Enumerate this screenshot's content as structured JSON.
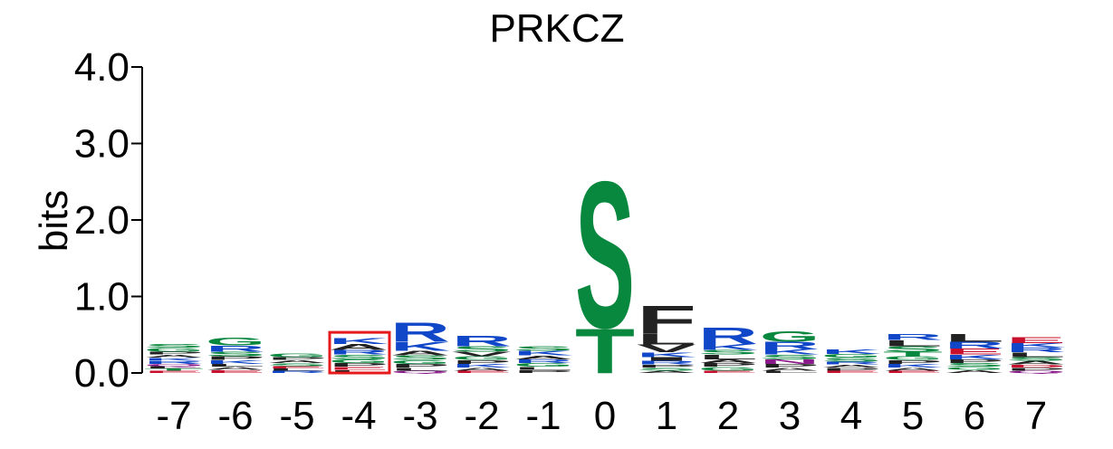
{
  "chart_data": {
    "type": "sequence-logo",
    "title": "PRKCZ",
    "ylabel": "bits",
    "ylim": [
      0,
      4
    ],
    "y_ticks": [
      "0.0",
      "1.0",
      "2.0",
      "3.0",
      "4.0"
    ],
    "y_tick_values": [
      0,
      1,
      2,
      3,
      4
    ],
    "grid": false,
    "highlighted_position": "-4",
    "highlight_color": "#e41a1c",
    "colors": {
      "polar_green": "#08873e",
      "basic_blue": "#1046c8",
      "hydrophobic_black": "#222222",
      "acidic_red": "#c8102e",
      "amide_purple": "#8a1a8a"
    },
    "positions": [
      {
        "label": "-7",
        "stack": [
          {
            "letter": "G",
            "bits": 0.05,
            "color": "#08873e"
          },
          {
            "letter": "S",
            "bits": 0.05,
            "color": "#08873e"
          },
          {
            "letter": "R",
            "bits": 0.04,
            "color": "#1046c8"
          },
          {
            "letter": "K",
            "bits": 0.04,
            "color": "#1046c8"
          },
          {
            "letter": "A",
            "bits": 0.04,
            "color": "#222222"
          },
          {
            "letter": "P",
            "bits": 0.04,
            "color": "#222222"
          },
          {
            "letter": "E",
            "bits": 0.03,
            "color": "#c8102e"
          },
          {
            "letter": "T",
            "bits": 0.03,
            "color": "#08873e"
          },
          {
            "letter": "L",
            "bits": 0.03,
            "color": "#222222"
          },
          {
            "letter": "Q",
            "bits": 0.03,
            "color": "#8a1a8a"
          }
        ]
      },
      {
        "label": "-6",
        "stack": [
          {
            "letter": "G",
            "bits": 0.1,
            "color": "#08873e"
          },
          {
            "letter": "R",
            "bits": 0.08,
            "color": "#1046c8"
          },
          {
            "letter": "S",
            "bits": 0.06,
            "color": "#08873e"
          },
          {
            "letter": "K",
            "bits": 0.05,
            "color": "#1046c8"
          },
          {
            "letter": "P",
            "bits": 0.05,
            "color": "#222222"
          },
          {
            "letter": "E",
            "bits": 0.04,
            "color": "#c8102e"
          },
          {
            "letter": "A",
            "bits": 0.04,
            "color": "#222222"
          },
          {
            "letter": "L",
            "bits": 0.04,
            "color": "#222222"
          }
        ]
      },
      {
        "label": "-5",
        "stack": [
          {
            "letter": "G",
            "bits": 0.05,
            "color": "#08873e"
          },
          {
            "letter": "S",
            "bits": 0.04,
            "color": "#08873e"
          },
          {
            "letter": "A",
            "bits": 0.04,
            "color": "#222222"
          },
          {
            "letter": "P",
            "bits": 0.04,
            "color": "#222222"
          },
          {
            "letter": "R",
            "bits": 0.03,
            "color": "#1046c8"
          },
          {
            "letter": "L",
            "bits": 0.03,
            "color": "#222222"
          },
          {
            "letter": "E",
            "bits": 0.03,
            "color": "#c8102e"
          }
        ]
      },
      {
        "label": "-4",
        "stack": [
          {
            "letter": "A",
            "bits": 0.08,
            "color": "#222222"
          },
          {
            "letter": "K",
            "bits": 0.08,
            "color": "#1046c8"
          },
          {
            "letter": "S",
            "bits": 0.06,
            "color": "#08873e"
          },
          {
            "letter": "R",
            "bits": 0.06,
            "color": "#1046c8"
          },
          {
            "letter": "P",
            "bits": 0.05,
            "color": "#222222"
          },
          {
            "letter": "G",
            "bits": 0.05,
            "color": "#08873e"
          },
          {
            "letter": "L",
            "bits": 0.04,
            "color": "#222222"
          },
          {
            "letter": "E",
            "bits": 0.04,
            "color": "#c8102e"
          }
        ]
      },
      {
        "label": "-3",
        "stack": [
          {
            "letter": "R",
            "bits": 0.26,
            "color": "#1046c8"
          },
          {
            "letter": "K",
            "bits": 0.12,
            "color": "#1046c8"
          },
          {
            "letter": "S",
            "bits": 0.06,
            "color": "#08873e"
          },
          {
            "letter": "A",
            "bits": 0.06,
            "color": "#222222"
          },
          {
            "letter": "P",
            "bits": 0.05,
            "color": "#222222"
          },
          {
            "letter": "G",
            "bits": 0.05,
            "color": "#08873e"
          },
          {
            "letter": "L",
            "bits": 0.04,
            "color": "#222222"
          },
          {
            "letter": "Q",
            "bits": 0.03,
            "color": "#8a1a8a"
          }
        ]
      },
      {
        "label": "-2",
        "stack": [
          {
            "letter": "R",
            "bits": 0.14,
            "color": "#1046c8"
          },
          {
            "letter": "S",
            "bits": 0.07,
            "color": "#08873e"
          },
          {
            "letter": "V",
            "bits": 0.06,
            "color": "#222222"
          },
          {
            "letter": "K",
            "bits": 0.05,
            "color": "#1046c8"
          },
          {
            "letter": "P",
            "bits": 0.05,
            "color": "#222222"
          },
          {
            "letter": "G",
            "bits": 0.05,
            "color": "#08873e"
          },
          {
            "letter": "A",
            "bits": 0.04,
            "color": "#222222"
          },
          {
            "letter": "E",
            "bits": 0.03,
            "color": "#c8102e"
          }
        ]
      },
      {
        "label": "-1",
        "stack": [
          {
            "letter": "K",
            "bits": 0.06,
            "color": "#1046c8"
          },
          {
            "letter": "S",
            "bits": 0.06,
            "color": "#08873e"
          },
          {
            "letter": "G",
            "bits": 0.05,
            "color": "#08873e"
          },
          {
            "letter": "R",
            "bits": 0.05,
            "color": "#1046c8"
          },
          {
            "letter": "A",
            "bits": 0.05,
            "color": "#222222"
          },
          {
            "letter": "P",
            "bits": 0.04,
            "color": "#222222"
          },
          {
            "letter": "L",
            "bits": 0.04,
            "color": "#222222"
          }
        ]
      },
      {
        "label": "0",
        "stack": [
          {
            "letter": "S",
            "bits": 1.97,
            "color": "#08873e"
          },
          {
            "letter": "T",
            "bits": 0.6,
            "color": "#08873e"
          }
        ]
      },
      {
        "label": "1",
        "stack": [
          {
            "letter": "F",
            "bits": 0.38,
            "color": "#222222"
          },
          {
            "letter": "L",
            "bits": 0.14,
            "color": "#222222"
          },
          {
            "letter": "V",
            "bits": 0.1,
            "color": "#222222"
          },
          {
            "letter": "K",
            "bits": 0.06,
            "color": "#1046c8"
          },
          {
            "letter": "R",
            "bits": 0.05,
            "color": "#1046c8"
          },
          {
            "letter": "I",
            "bits": 0.05,
            "color": "#222222"
          },
          {
            "letter": "S",
            "bits": 0.04,
            "color": "#08873e"
          },
          {
            "letter": "P",
            "bits": 0.04,
            "color": "#222222"
          },
          {
            "letter": "A",
            "bits": 0.03,
            "color": "#222222"
          }
        ]
      },
      {
        "label": "2",
        "stack": [
          {
            "letter": "R",
            "bits": 0.22,
            "color": "#1046c8"
          },
          {
            "letter": "K",
            "bits": 0.08,
            "color": "#1046c8"
          },
          {
            "letter": "L",
            "bits": 0.06,
            "color": "#222222"
          },
          {
            "letter": "S",
            "bits": 0.06,
            "color": "#08873e"
          },
          {
            "letter": "G",
            "bits": 0.05,
            "color": "#08873e"
          },
          {
            "letter": "P",
            "bits": 0.05,
            "color": "#222222"
          },
          {
            "letter": "A",
            "bits": 0.05,
            "color": "#222222"
          },
          {
            "letter": "E",
            "bits": 0.03,
            "color": "#c8102e"
          }
        ]
      },
      {
        "label": "3",
        "stack": [
          {
            "letter": "G",
            "bits": 0.14,
            "color": "#08873e"
          },
          {
            "letter": "R",
            "bits": 0.1,
            "color": "#1046c8"
          },
          {
            "letter": "K",
            "bits": 0.07,
            "color": "#1046c8"
          },
          {
            "letter": "N",
            "bits": 0.06,
            "color": "#8a1a8a"
          },
          {
            "letter": "S",
            "bits": 0.06,
            "color": "#08873e"
          },
          {
            "letter": "P",
            "bits": 0.05,
            "color": "#222222"
          },
          {
            "letter": "A",
            "bits": 0.04,
            "color": "#222222"
          },
          {
            "letter": "L",
            "bits": 0.03,
            "color": "#222222"
          }
        ]
      },
      {
        "label": "4",
        "stack": [
          {
            "letter": "K",
            "bits": 0.06,
            "color": "#1046c8"
          },
          {
            "letter": "S",
            "bits": 0.05,
            "color": "#08873e"
          },
          {
            "letter": "G",
            "bits": 0.05,
            "color": "#08873e"
          },
          {
            "letter": "P",
            "bits": 0.04,
            "color": "#222222"
          },
          {
            "letter": "A",
            "bits": 0.04,
            "color": "#222222"
          },
          {
            "letter": "R",
            "bits": 0.04,
            "color": "#1046c8"
          },
          {
            "letter": "E",
            "bits": 0.03,
            "color": "#c8102e"
          }
        ]
      },
      {
        "label": "5",
        "stack": [
          {
            "letter": "L",
            "bits": 0.08,
            "color": "#222222"
          },
          {
            "letter": "R",
            "bits": 0.08,
            "color": "#1046c8"
          },
          {
            "letter": "S",
            "bits": 0.07,
            "color": "#08873e"
          },
          {
            "letter": "T",
            "bits": 0.06,
            "color": "#08873e"
          },
          {
            "letter": "K",
            "bits": 0.05,
            "color": "#1046c8"
          },
          {
            "letter": "P",
            "bits": 0.05,
            "color": "#222222"
          },
          {
            "letter": "G",
            "bits": 0.05,
            "color": "#08873e"
          },
          {
            "letter": "A",
            "bits": 0.04,
            "color": "#222222"
          },
          {
            "letter": "E",
            "bits": 0.03,
            "color": "#c8102e"
          }
        ]
      },
      {
        "label": "6",
        "stack": [
          {
            "letter": "L",
            "bits": 0.1,
            "color": "#222222"
          },
          {
            "letter": "R",
            "bits": 0.09,
            "color": "#1046c8"
          },
          {
            "letter": "E",
            "bits": 0.08,
            "color": "#c8102e"
          },
          {
            "letter": "K",
            "bits": 0.06,
            "color": "#1046c8"
          },
          {
            "letter": "S",
            "bits": 0.05,
            "color": "#08873e"
          },
          {
            "letter": "P",
            "bits": 0.05,
            "color": "#222222"
          },
          {
            "letter": "A",
            "bits": 0.04,
            "color": "#222222"
          },
          {
            "letter": "G",
            "bits": 0.04,
            "color": "#08873e"
          }
        ]
      },
      {
        "label": "7",
        "stack": [
          {
            "letter": "E",
            "bits": 0.08,
            "color": "#c8102e"
          },
          {
            "letter": "L",
            "bits": 0.06,
            "color": "#222222"
          },
          {
            "letter": "R",
            "bits": 0.06,
            "color": "#1046c8"
          },
          {
            "letter": "K",
            "bits": 0.06,
            "color": "#1046c8"
          },
          {
            "letter": "A",
            "bits": 0.05,
            "color": "#222222"
          },
          {
            "letter": "S",
            "bits": 0.05,
            "color": "#08873e"
          },
          {
            "letter": "P",
            "bits": 0.04,
            "color": "#222222"
          },
          {
            "letter": "D",
            "bits": 0.04,
            "color": "#c8102e"
          },
          {
            "letter": "Q",
            "bits": 0.03,
            "color": "#8a1a8a"
          }
        ]
      }
    ]
  }
}
